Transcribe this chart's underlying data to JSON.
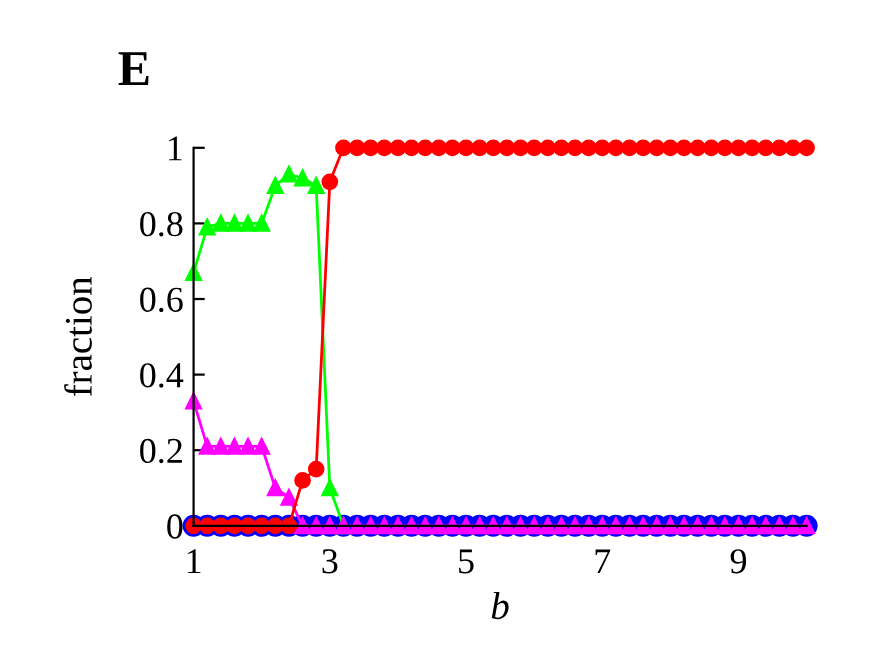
{
  "chart_data": {
    "type": "line",
    "title": "E",
    "xlabel": "b",
    "ylabel": "fraction",
    "xlim": [
      1,
      10
    ],
    "ylim": [
      0,
      1
    ],
    "xticks": [
      1,
      3,
      5,
      7,
      9
    ],
    "yticks": [
      0,
      0.2,
      0.4,
      0.6,
      0.8,
      1
    ],
    "grid": false,
    "legend": false,
    "line_style": "solid",
    "x": [
      1,
      1.2,
      1.4,
      1.6,
      1.8,
      2,
      2.2,
      2.4,
      2.6,
      2.8,
      3,
      3.2,
      3.4,
      3.6,
      3.8,
      4,
      4.2,
      4.4,
      4.6,
      4.8,
      5,
      5.2,
      5.4,
      5.6,
      5.8,
      6,
      6.2,
      6.4,
      6.6,
      6.8,
      7,
      7.2,
      7.4,
      7.6,
      7.8,
      8,
      8.2,
      8.4,
      8.6,
      8.8,
      9,
      9.2,
      9.4,
      9.6,
      9.8,
      10
    ],
    "series": [
      {
        "color": "#00ff00",
        "marker": "triangle",
        "values": [
          0.67,
          0.79,
          0.8,
          0.8,
          0.8,
          0.8,
          0.9,
          0.93,
          0.92,
          0.9,
          0.1,
          0,
          null,
          null,
          null,
          null,
          null,
          null,
          null,
          null,
          null,
          null,
          null,
          null,
          null,
          null,
          null,
          null,
          null,
          null,
          null,
          null,
          null,
          null,
          null,
          null,
          null,
          null,
          null,
          null,
          null,
          null,
          null,
          null,
          null,
          null
        ]
      },
      {
        "color": "#ff00ff",
        "marker": "triangle",
        "values": [
          0.33,
          0.21,
          0.21,
          0.21,
          0.21,
          0.21,
          0.1,
          0.075,
          0,
          0,
          0,
          0,
          0,
          0,
          0,
          0,
          0,
          0,
          0,
          0,
          0,
          0,
          0,
          0,
          0,
          0,
          0,
          0,
          0,
          0,
          0,
          0,
          0,
          0,
          0,
          0,
          0,
          0,
          0,
          0,
          0,
          0,
          0,
          0,
          0,
          0
        ]
      },
      {
        "color": "#ff0000",
        "marker": "circle",
        "values": [
          0,
          0,
          0,
          0,
          0,
          0,
          0,
          0,
          0.12,
          0.15,
          0.91,
          1,
          1,
          1,
          1,
          1,
          1,
          1,
          1,
          1,
          1,
          1,
          1,
          1,
          1,
          1,
          1,
          1,
          1,
          1,
          1,
          1,
          1,
          1,
          1,
          1,
          1,
          1,
          1,
          1,
          1,
          1,
          1,
          1,
          1,
          1
        ]
      },
      {
        "color": "#0000ff",
        "type": "scatter",
        "marker": "circle",
        "values": [
          0,
          0,
          0,
          0,
          0,
          0,
          0,
          0,
          0,
          0,
          0,
          0,
          0,
          0,
          0,
          0,
          0,
          0,
          0,
          0,
          0,
          0,
          0,
          0,
          0,
          0,
          0,
          0,
          0,
          0,
          0,
          0,
          0,
          0,
          0,
          0,
          0,
          0,
          0,
          0,
          0,
          0,
          0,
          0,
          0,
          0
        ]
      }
    ]
  }
}
